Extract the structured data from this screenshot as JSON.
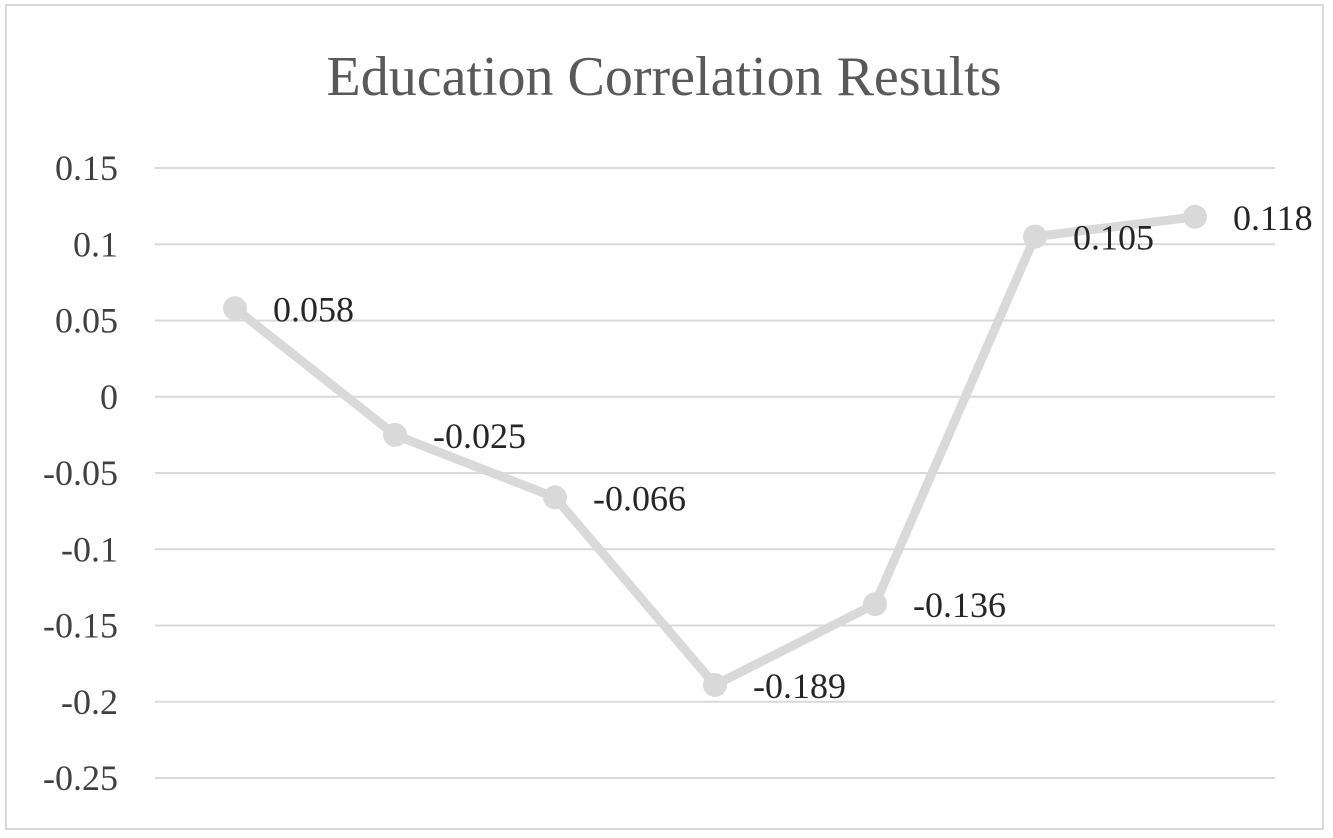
{
  "chart_data": {
    "type": "line",
    "title": "Education Correlation Results",
    "xlabel": "",
    "ylabel": "",
    "ylim": [
      -0.25,
      0.15
    ],
    "ytick_labels": [
      "0.15",
      "0.1",
      "0.05",
      "0",
      "-0.05",
      "-0.1",
      "-0.15",
      "-0.2",
      "-0.25"
    ],
    "grid": true,
    "legend": "none",
    "series": [
      {
        "values": [
          0.058,
          -0.025,
          -0.066,
          -0.189,
          -0.136,
          0.105,
          0.118
        ],
        "data_labels": [
          "0.058",
          "-0.025",
          "-0.066",
          "-0.189",
          "-0.136",
          "0.105",
          "0.118"
        ],
        "color": "#d9d9d9"
      }
    ]
  }
}
